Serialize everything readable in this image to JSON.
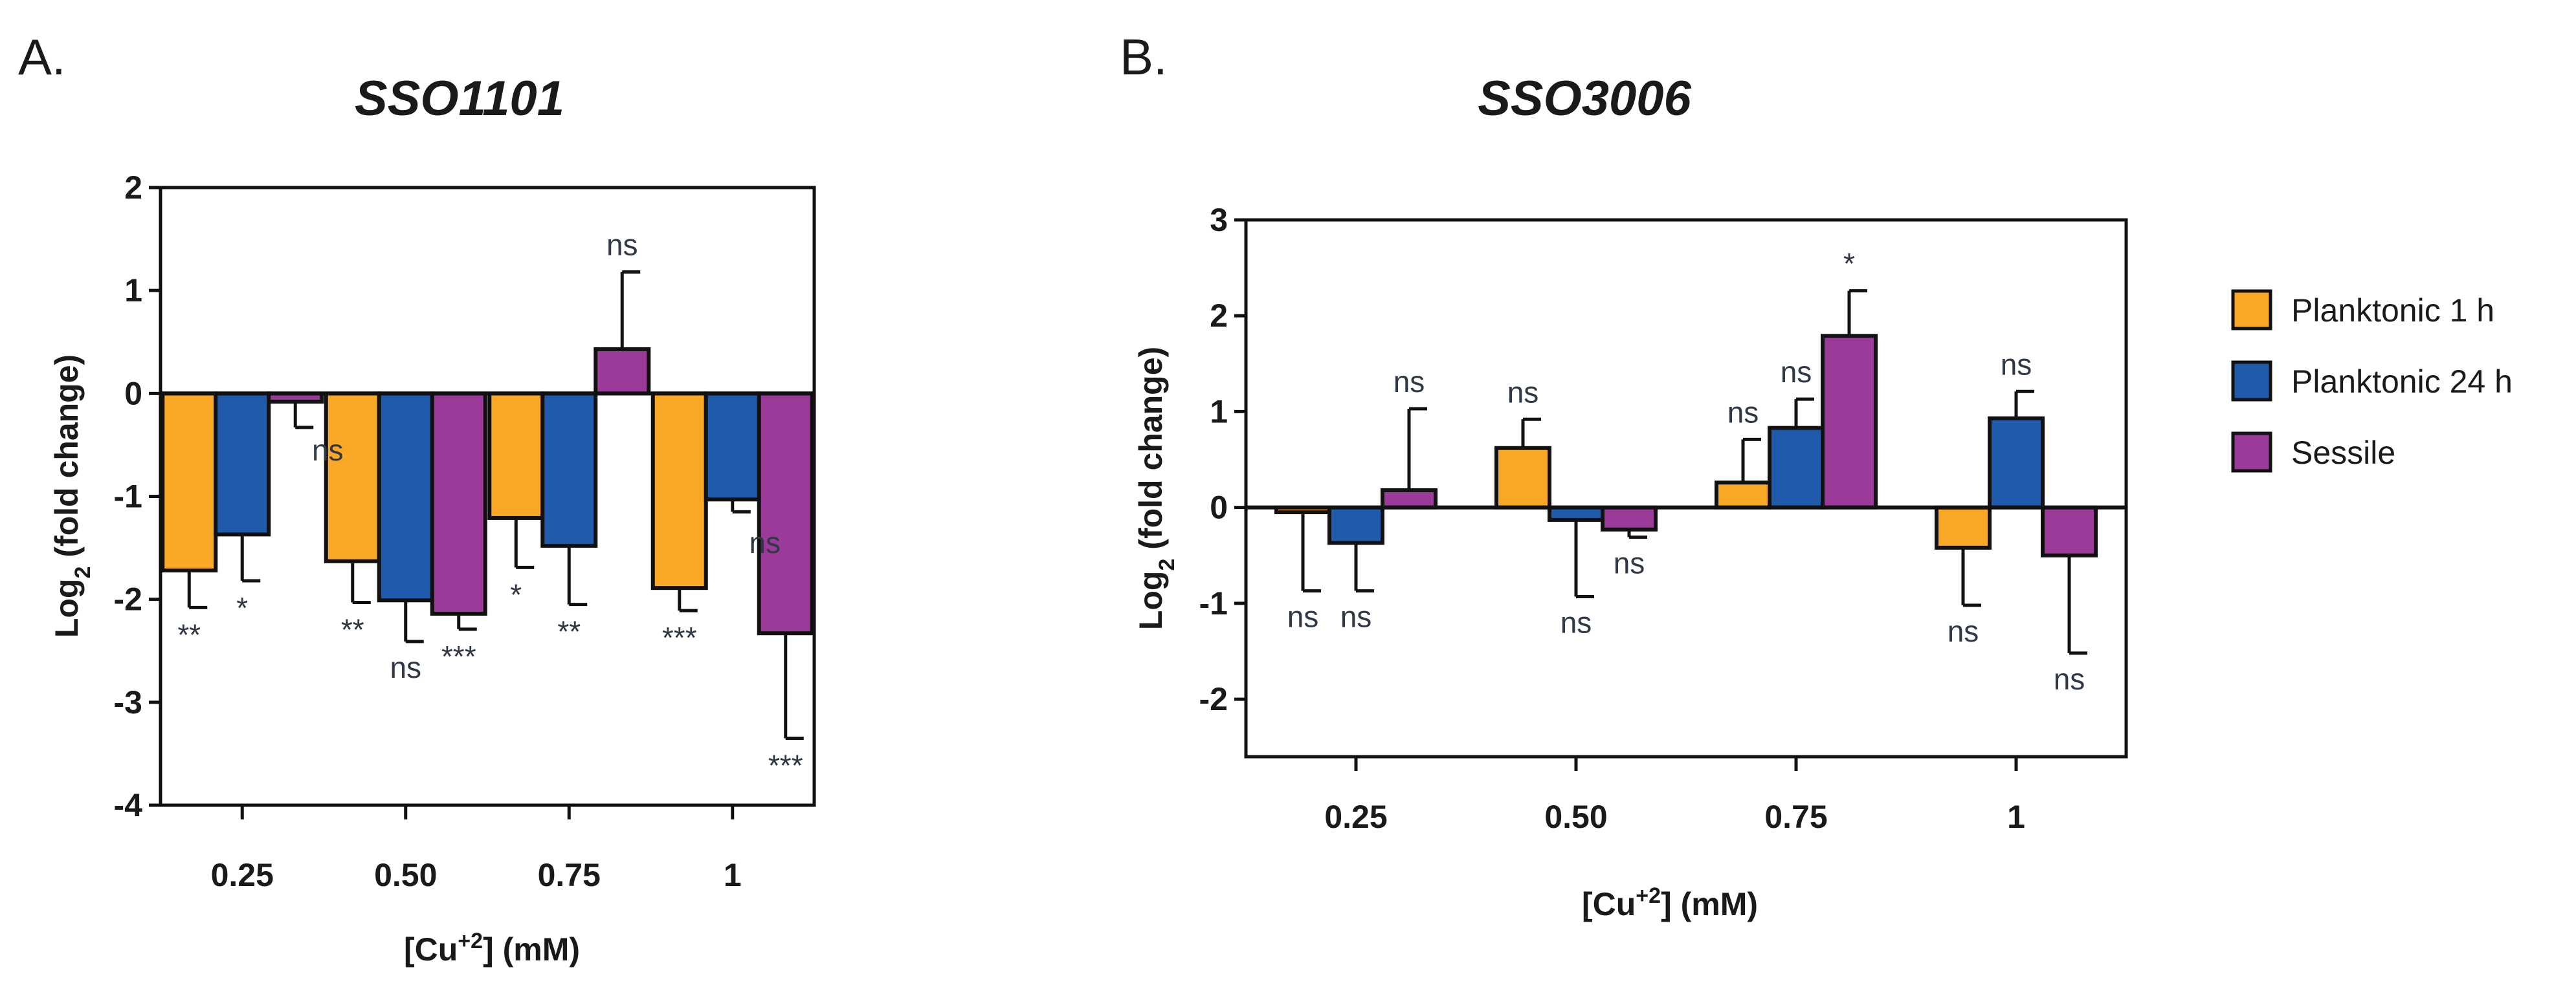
{
  "figure": {
    "panel_a_letter": "A.",
    "panel_b_letter": "B."
  },
  "legend": {
    "items": [
      {
        "label": "Planktonic 1 h",
        "color": "#F9A825"
      },
      {
        "label": "Planktonic 24 h",
        "color": "#1F5BAA"
      },
      {
        "label": "Sessile",
        "color": "#9B3A98"
      }
    ]
  },
  "chart_data": [
    {
      "type": "bar",
      "title": "SSO1101",
      "xlabel": "[Cu+2] (mM)",
      "ylabel": "Log2 (fold change)",
      "categories": [
        "0.25",
        "0.50",
        "0.75",
        "1"
      ],
      "ylim": [
        -4,
        2
      ],
      "yticks": [
        2,
        1,
        0,
        -1,
        -2,
        -3,
        -4
      ],
      "series": [
        {
          "name": "Planktonic 1 h",
          "color": "#F9A825",
          "values": [
            -1.72,
            -1.63,
            -1.21,
            -1.89
          ],
          "errors": [
            0.36,
            0.4,
            0.48,
            0.22
          ],
          "significance": [
            "**",
            "**",
            "*",
            "***"
          ]
        },
        {
          "name": "Planktonic 24 h",
          "color": "#1F5BAA",
          "values": [
            -1.37,
            -2.01,
            -1.48,
            -1.03
          ],
          "errors": [
            0.45,
            0.4,
            0.57,
            0.12
          ],
          "significance": [
            "*",
            "ns",
            "**",
            "ns"
          ]
        },
        {
          "name": "Sessile",
          "color": "#9B3A98",
          "values": [
            -0.08,
            -2.14,
            0.43,
            -2.33
          ],
          "errors": [
            0.25,
            0.15,
            0.75,
            1.02
          ],
          "significance": [
            "ns",
            "***",
            "ns",
            "***"
          ]
        }
      ]
    },
    {
      "type": "bar",
      "title": "SSO3006",
      "xlabel": "[Cu+2] (mM)",
      "ylabel": "Log2 (fold change)",
      "categories": [
        "0.25",
        "0.50",
        "0.75",
        "1"
      ],
      "ylim": [
        -2.6,
        3
      ],
      "yticks": [
        3,
        2,
        1,
        0,
        -1,
        -2
      ],
      "series": [
        {
          "name": "Planktonic 1 h",
          "color": "#F9A825",
          "values": [
            -0.05,
            0.62,
            0.26,
            -0.42
          ],
          "errors": [
            0.82,
            0.3,
            0.45,
            0.6
          ],
          "significance": [
            "ns",
            "ns",
            "ns",
            "ns"
          ]
        },
        {
          "name": "Planktonic 24 h",
          "color": "#1F5BAA",
          "values": [
            -0.37,
            -0.13,
            0.83,
            0.93
          ],
          "errors": [
            0.5,
            0.8,
            0.3,
            0.28
          ],
          "significance": [
            "ns",
            "ns",
            "ns",
            "ns"
          ]
        },
        {
          "name": "Sessile",
          "color": "#9B3A98",
          "values": [
            0.18,
            -0.23,
            1.79,
            -0.5
          ],
          "errors": [
            0.85,
            0.08,
            0.47,
            1.02
          ],
          "significance": [
            "ns",
            "ns",
            "*",
            "ns"
          ]
        }
      ]
    }
  ]
}
